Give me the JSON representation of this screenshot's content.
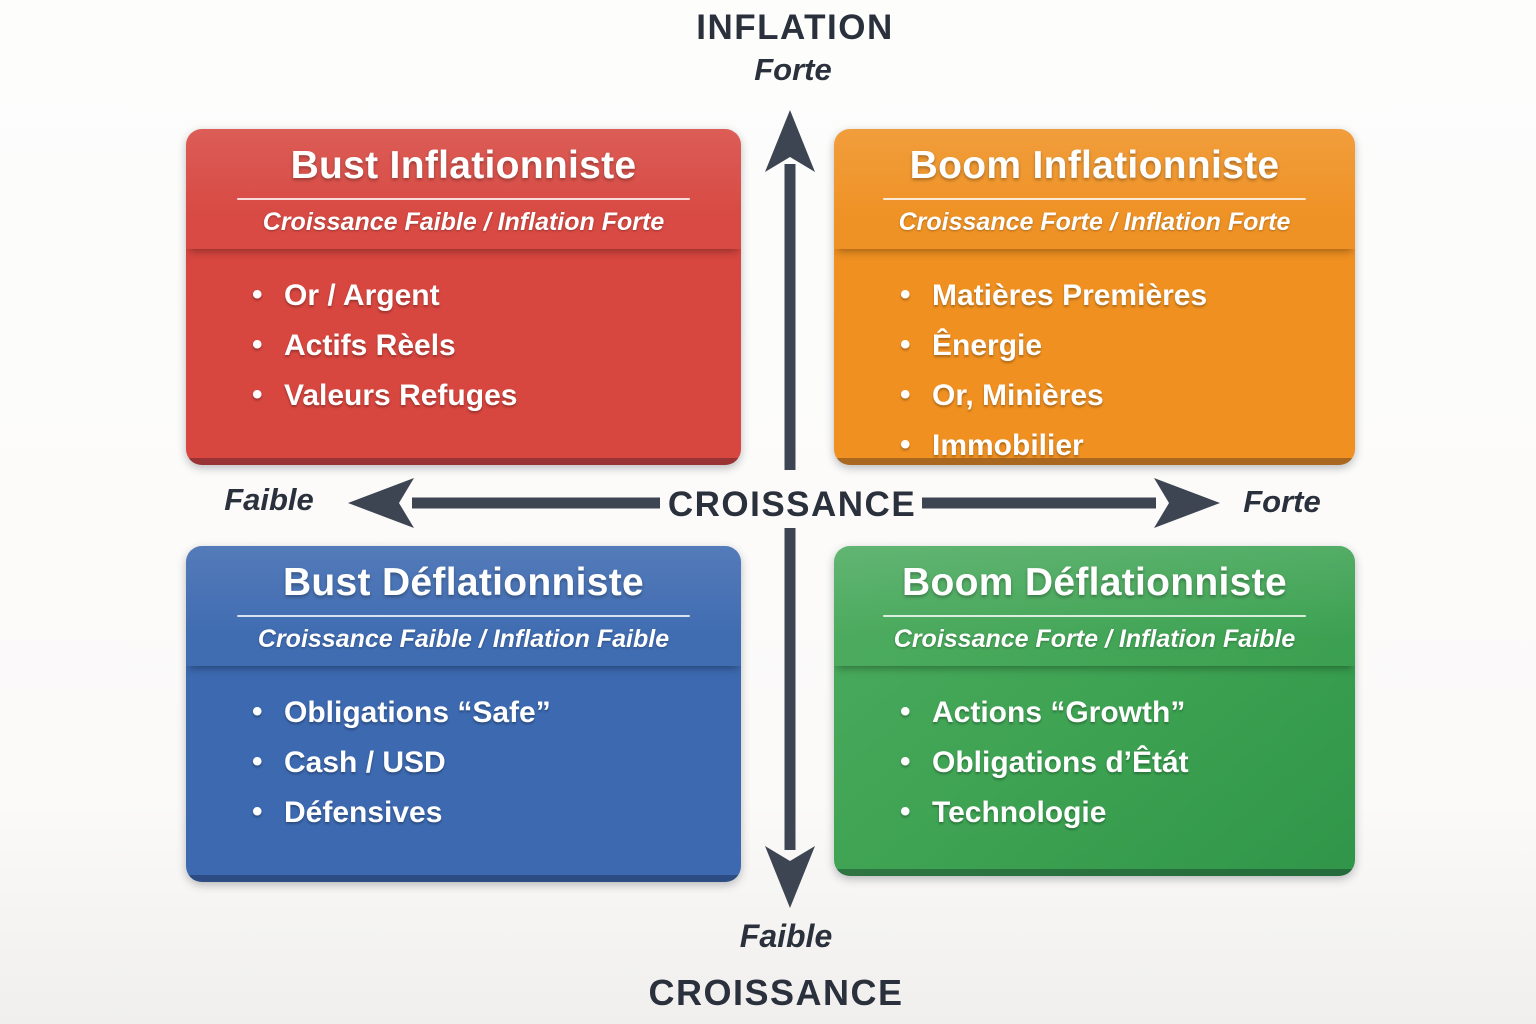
{
  "diagram": {
    "vertical_axis": {
      "top_title": "INFLATION",
      "top_level": "Forte",
      "bottom_level": "Faible",
      "bottom_title": "CROISSANCE"
    },
    "horizontal_axis": {
      "title": "CROISSANCE",
      "left_label": "Faible",
      "right_label": "Forte"
    },
    "quadrants": [
      {
        "position": "top-left",
        "title": "Bust Inflationniste",
        "subtitle": "Croissance Faible / Inflation Forte",
        "color": "#d7463f",
        "items": [
          "Or / Argent",
          "Actifs Rèels",
          "Valeurs Refuges"
        ]
      },
      {
        "position": "top-right",
        "title": "Boom Inflationniste",
        "subtitle": "Croissance Forte / Inflation Forte",
        "color": "#ef9021",
        "items": [
          "Matières Premières",
          "Ênergie",
          "Or, Minières",
          "Immobilier"
        ]
      },
      {
        "position": "bottom-left",
        "title": "Bust Déflationniste",
        "subtitle": "Croissance Faible / Inflation Faible",
        "color": "#3c69b0",
        "items": [
          "Obligations “Safe”",
          "Cash / USD",
          "Défensives"
        ]
      },
      {
        "position": "bottom-right",
        "title": "Boom Déflationniste",
        "subtitle": "Croissance Forte / Inflation Faible",
        "color": "#41a556",
        "items": [
          "Actions “Growth”",
          "Obligations d’Êtát",
          "Technologie"
        ]
      }
    ],
    "arrow_color": "#3e4552",
    "text_color": "#2b313c"
  }
}
